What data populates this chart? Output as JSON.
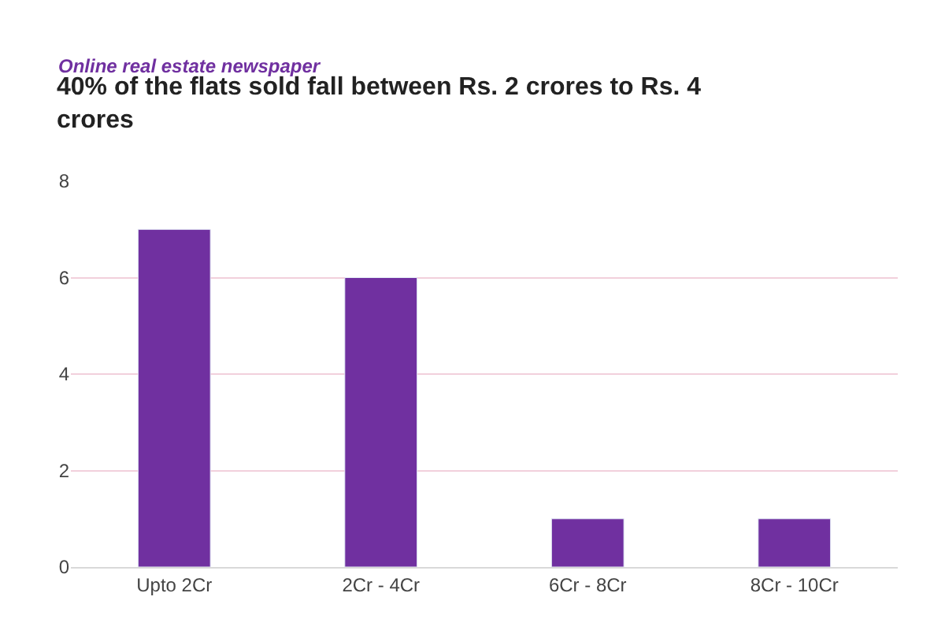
{
  "chart_data": {
    "type": "bar",
    "title": "40% of the flats sold fall between Rs. 2 crores to Rs. 4 crores",
    "annotations": [
      "Online real estate newspaper"
    ],
    "categories": [
      "Upto 2Cr",
      "2Cr - 4Cr",
      "6Cr - 8Cr",
      "8Cr - 10Cr"
    ],
    "values": [
      7,
      6,
      1,
      1
    ],
    "color": "#7030a0",
    "ylim": [
      0,
      8
    ],
    "yticks": [
      0,
      2,
      4,
      6,
      8
    ],
    "grid": "y"
  }
}
